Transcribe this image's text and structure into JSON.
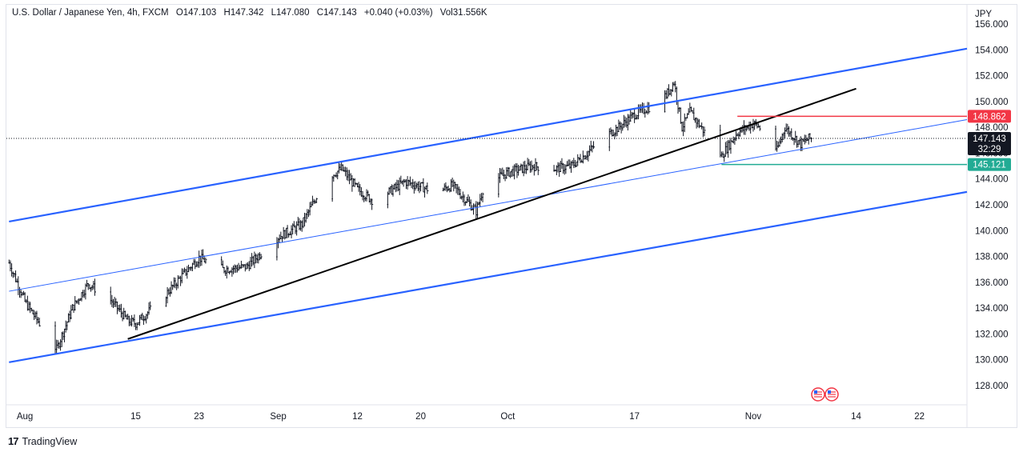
{
  "header": {
    "symbol": "U.S. Dollar / Japanese Yen, 4h, FXCM",
    "open": "O147.103",
    "high": "H147.342",
    "low": "L147.080",
    "close": "C147.143",
    "change": "+0.040 (+0.03%)",
    "volume": "Vol31.556K"
  },
  "axis": {
    "currency": "JPY",
    "current_price": "147.143",
    "countdown": "32:29",
    "resistance_label": "148.862",
    "support_label": "145.121"
  },
  "footer": {
    "brand": "TradingView"
  },
  "colors": {
    "channel": "#2962ff",
    "trendline": "#000000",
    "resistance": "#f23645",
    "support": "#22ab94",
    "candles": "#131722"
  },
  "chart_data": {
    "type": "candlestick",
    "symbol": "USDJPY",
    "timeframe": "4h",
    "ylim": [
      126.5,
      157.5
    ],
    "y_ticks": [
      128,
      130,
      132,
      134,
      136,
      138,
      140,
      142,
      144,
      146,
      148,
      150,
      152,
      154,
      156
    ],
    "x_ticks": [
      {
        "label": "Aug",
        "date": "2024-08-01"
      },
      {
        "label": "15",
        "date": "2024-08-15"
      },
      {
        "label": "23",
        "date": "2024-08-23"
      },
      {
        "label": "Sep",
        "date": "2024-09-02"
      },
      {
        "label": "12",
        "date": "2024-09-12"
      },
      {
        "label": "20",
        "date": "2024-09-20"
      },
      {
        "label": "Oct",
        "date": "2024-10-01"
      },
      {
        "label": "17",
        "date": "2024-10-17"
      },
      {
        "label": "Nov",
        "date": "2024-11-01"
      },
      {
        "label": "14",
        "date": "2024-11-14"
      },
      {
        "label": "22",
        "date": "2024-11-22"
      }
    ],
    "price_path": [
      {
        "date": "2024-07-30",
        "price": 137.5
      },
      {
        "date": "2024-08-01",
        "price": 134.5
      },
      {
        "date": "2024-08-05",
        "price": 130.8
      },
      {
        "date": "2024-08-07",
        "price": 134.0
      },
      {
        "date": "2024-08-09",
        "price": 135.9
      },
      {
        "date": "2024-08-12",
        "price": 134.5
      },
      {
        "date": "2024-08-14",
        "price": 133.0
      },
      {
        "date": "2024-08-15",
        "price": 132.8
      },
      {
        "date": "2024-08-18",
        "price": 134.5
      },
      {
        "date": "2024-08-21",
        "price": 136.6
      },
      {
        "date": "2024-08-23",
        "price": 137.9
      },
      {
        "date": "2024-08-26",
        "price": 137.0
      },
      {
        "date": "2024-08-29",
        "price": 137.2
      },
      {
        "date": "2024-09-02",
        "price": 139.5
      },
      {
        "date": "2024-09-05",
        "price": 140.5
      },
      {
        "date": "2024-09-08",
        "price": 144.0
      },
      {
        "date": "2024-09-10",
        "price": 144.8
      },
      {
        "date": "2024-09-12",
        "price": 143.2
      },
      {
        "date": "2024-09-14",
        "price": 142.3
      },
      {
        "date": "2024-09-16",
        "price": 143.0
      },
      {
        "date": "2024-09-18",
        "price": 143.8
      },
      {
        "date": "2024-09-20",
        "price": 143.4
      },
      {
        "date": "2024-09-22",
        "price": 143.0
      },
      {
        "date": "2024-09-24",
        "price": 143.5
      },
      {
        "date": "2024-09-27",
        "price": 141.5
      },
      {
        "date": "2024-09-28",
        "price": 143.5
      },
      {
        "date": "2024-10-01",
        "price": 144.5
      },
      {
        "date": "2024-10-04",
        "price": 145.0
      },
      {
        "date": "2024-10-07",
        "price": 144.8
      },
      {
        "date": "2024-10-09",
        "price": 145.0
      },
      {
        "date": "2024-10-11",
        "price": 146.0
      },
      {
        "date": "2024-10-13",
        "price": 147.2
      },
      {
        "date": "2024-10-15",
        "price": 148.0
      },
      {
        "date": "2024-10-17",
        "price": 149.0
      },
      {
        "date": "2024-10-19",
        "price": 149.6
      },
      {
        "date": "2024-10-21",
        "price": 150.5
      },
      {
        "date": "2024-10-22",
        "price": 151.5
      },
      {
        "date": "2024-10-23",
        "price": 148.0
      },
      {
        "date": "2024-10-24",
        "price": 149.2
      },
      {
        "date": "2024-10-26",
        "price": 147.5
      },
      {
        "date": "2024-10-28",
        "price": 145.8
      },
      {
        "date": "2024-10-30",
        "price": 147.6
      },
      {
        "date": "2024-11-01",
        "price": 148.3
      },
      {
        "date": "2024-11-03",
        "price": 147.5
      },
      {
        "date": "2024-11-04",
        "price": 146.2
      },
      {
        "date": "2024-11-05",
        "price": 148.0
      },
      {
        "date": "2024-11-07",
        "price": 146.7
      },
      {
        "date": "2024-11-08",
        "price": 147.143
      }
    ],
    "drawings": [
      {
        "name": "channel-upper-line",
        "kind": "channel",
        "from": {
          "date": "2024-07-30",
          "price": 140.7
        },
        "to": {
          "date": "2024-11-28",
          "price": 154.1
        }
      },
      {
        "name": "channel-middle-line",
        "kind": "channel-mid",
        "from": {
          "date": "2024-07-30",
          "price": 135.3
        },
        "to": {
          "date": "2024-11-28",
          "price": 148.6
        }
      },
      {
        "name": "channel-lower-line",
        "kind": "channel",
        "from": {
          "date": "2024-07-30",
          "price": 129.8
        },
        "to": {
          "date": "2024-11-28",
          "price": 143.0
        }
      },
      {
        "name": "trendline",
        "kind": "trend",
        "from": {
          "date": "2024-08-14",
          "price": 131.6
        },
        "to": {
          "date": "2024-11-14",
          "price": 151.0
        }
      },
      {
        "name": "resistance-line",
        "kind": "resistance",
        "from": {
          "date": "2024-10-30",
          "price": 148.862
        },
        "to": {
          "date": "2024-11-28",
          "price": 148.862
        }
      },
      {
        "name": "support-line",
        "kind": "support",
        "from": {
          "date": "2024-10-28",
          "price": 145.121
        },
        "to": {
          "date": "2024-11-28",
          "price": 145.121
        }
      }
    ]
  }
}
